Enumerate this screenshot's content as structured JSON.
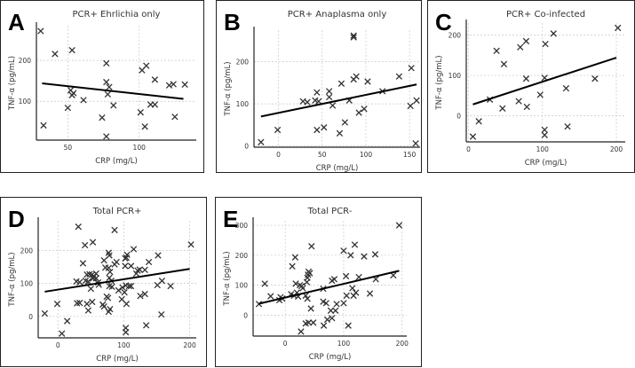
{
  "figure": {
    "panels": [
      "A",
      "B",
      "C",
      "D",
      "E"
    ]
  },
  "chart_data": [
    {
      "type": "scatter",
      "panel_letter": "A",
      "title": "PCR+ Ehrlichia only",
      "xlabel": "CRP (mg/L)",
      "ylabel": "TNF-α (pg/mL)",
      "xlim": [
        28,
        140
      ],
      "ylim": [
        5,
        285
      ],
      "xticks": [
        50,
        100
      ],
      "yticks": [
        100,
        200
      ],
      "grid": true,
      "marker": "x",
      "points": [
        [
          31,
          272
        ],
        [
          33,
          41
        ],
        [
          41,
          216
        ],
        [
          53,
          225
        ],
        [
          50,
          84
        ],
        [
          52,
          127
        ],
        [
          53,
          115
        ],
        [
          54,
          120
        ],
        [
          61,
          103
        ],
        [
          74,
          60
        ],
        [
          77,
          193
        ],
        [
          77,
          147
        ],
        [
          78,
          117
        ],
        [
          79,
          135
        ],
        [
          82,
          90
        ],
        [
          77,
          14
        ],
        [
          101,
          73
        ],
        [
          102,
          176
        ],
        [
          105,
          187
        ],
        [
          104,
          38
        ],
        [
          108,
          92
        ],
        [
          111,
          92
        ],
        [
          111,
          153
        ],
        [
          121,
          139
        ],
        [
          124,
          142
        ],
        [
          125,
          62
        ],
        [
          132,
          141
        ]
      ],
      "fit_line": {
        "x": [
          32,
          131
        ],
        "y": [
          144,
          106
        ]
      }
    },
    {
      "type": "scatter",
      "panel_letter": "B",
      "title": "PCR+ Anaplasma only",
      "xlabel": "CRP (mg/L)",
      "ylabel": "TNF-α (pg/mL)",
      "xlim": [
        -28,
        162
      ],
      "ylim": [
        -3,
        275
      ],
      "xticks": [
        0,
        50,
        100,
        150
      ],
      "yticks": [
        0,
        100,
        200
      ],
      "grid": true,
      "marker": "x",
      "points": [
        [
          -20,
          9
        ],
        [
          -1,
          38
        ],
        [
          28,
          106
        ],
        [
          33,
          104
        ],
        [
          42,
          108
        ],
        [
          44,
          38
        ],
        [
          44,
          127
        ],
        [
          46,
          106
        ],
        [
          52,
          44
        ],
        [
          58,
          116
        ],
        [
          58,
          130
        ],
        [
          62,
          96
        ],
        [
          70,
          30
        ],
        [
          72,
          148
        ],
        [
          76,
          56
        ],
        [
          81,
          108
        ],
        [
          86,
          158
        ],
        [
          86,
          262
        ],
        [
          86,
          258
        ],
        [
          89,
          165
        ],
        [
          92,
          79
        ],
        [
          98,
          88
        ],
        [
          102,
          153
        ],
        [
          119,
          130
        ],
        [
          138,
          165
        ],
        [
          151,
          95
        ],
        [
          152,
          185
        ],
        [
          157,
          6
        ],
        [
          158,
          108
        ]
      ],
      "fit_line": {
        "x": [
          -20,
          158
        ],
        "y": [
          70,
          146
        ]
      }
    },
    {
      "type": "scatter",
      "panel_letter": "C",
      "title": "PCR+ Co-infected",
      "xlabel": "CRP (mg/L)",
      "ylabel": "TNF-α (pg/mL)",
      "xlim": [
        -3,
        212
      ],
      "ylim": [
        -65,
        230
      ],
      "xticks": [
        0,
        100,
        200
      ],
      "yticks": [
        0,
        100,
        200
      ],
      "grid": true,
      "marker": "x",
      "points": [
        [
          6,
          -52
        ],
        [
          14,
          -14
        ],
        [
          29,
          40
        ],
        [
          38,
          161
        ],
        [
          46,
          18
        ],
        [
          48,
          128
        ],
        [
          68,
          36
        ],
        [
          70,
          170
        ],
        [
          78,
          185
        ],
        [
          78,
          92
        ],
        [
          79,
          22
        ],
        [
          97,
          52
        ],
        [
          104,
          178
        ],
        [
          103,
          94
        ],
        [
          103,
          -35
        ],
        [
          103,
          -48
        ],
        [
          115,
          204
        ],
        [
          132,
          68
        ],
        [
          134,
          -27
        ],
        [
          171,
          92
        ],
        [
          202,
          218
        ]
      ],
      "fit_line": {
        "x": [
          6,
          200
        ],
        "y": [
          28,
          144
        ]
      }
    },
    {
      "type": "scatter",
      "panel_letter": "D",
      "title": "Total PCR+",
      "xlabel": "CRP (mg/L)",
      "ylabel": "TNF-α (pg/mL)",
      "xlim": [
        -30,
        210
      ],
      "ylim": [
        -65,
        290
      ],
      "xticks": [
        0,
        100,
        200
      ],
      "yticks": [
        0,
        100,
        200
      ],
      "grid": true,
      "marker": "x",
      "points": [
        [
          -20,
          9
        ],
        [
          -1,
          38
        ],
        [
          6,
          -52
        ],
        [
          14,
          -14
        ],
        [
          28,
          106
        ],
        [
          29,
          40
        ],
        [
          31,
          272
        ],
        [
          33,
          104
        ],
        [
          33,
          41
        ],
        [
          38,
          161
        ],
        [
          41,
          216
        ],
        [
          42,
          108
        ],
        [
          44,
          38
        ],
        [
          44,
          127
        ],
        [
          46,
          18
        ],
        [
          46,
          106
        ],
        [
          48,
          128
        ],
        [
          50,
          84
        ],
        [
          52,
          44
        ],
        [
          52,
          127
        ],
        [
          53,
          225
        ],
        [
          53,
          115
        ],
        [
          54,
          120
        ],
        [
          58,
          116
        ],
        [
          58,
          130
        ],
        [
          61,
          103
        ],
        [
          62,
          96
        ],
        [
          68,
          36
        ],
        [
          70,
          30
        ],
        [
          70,
          170
        ],
        [
          72,
          148
        ],
        [
          74,
          60
        ],
        [
          76,
          56
        ],
        [
          77,
          193
        ],
        [
          77,
          147
        ],
        [
          77,
          14
        ],
        [
          78,
          117
        ],
        [
          78,
          185
        ],
        [
          78,
          92
        ],
        [
          79,
          22
        ],
        [
          79,
          135
        ],
        [
          81,
          108
        ],
        [
          82,
          90
        ],
        [
          86,
          158
        ],
        [
          86,
          262
        ],
        [
          89,
          165
        ],
        [
          92,
          79
        ],
        [
          97,
          52
        ],
        [
          98,
          88
        ],
        [
          101,
          73
        ],
        [
          102,
          176
        ],
        [
          102,
          153
        ],
        [
          103,
          94
        ],
        [
          103,
          -35
        ],
        [
          103,
          -48
        ],
        [
          104,
          178
        ],
        [
          104,
          38
        ],
        [
          105,
          187
        ],
        [
          108,
          92
        ],
        [
          111,
          92
        ],
        [
          111,
          153
        ],
        [
          115,
          204
        ],
        [
          119,
          130
        ],
        [
          121,
          139
        ],
        [
          124,
          142
        ],
        [
          125,
          62
        ],
        [
          132,
          141
        ],
        [
          132,
          68
        ],
        [
          134,
          -27
        ],
        [
          138,
          165
        ],
        [
          151,
          95
        ],
        [
          152,
          185
        ],
        [
          157,
          6
        ],
        [
          158,
          108
        ],
        [
          171,
          92
        ],
        [
          202,
          218
        ]
      ],
      "fit_line": {
        "x": [
          -20,
          200
        ],
        "y": [
          75,
          144
        ]
      }
    },
    {
      "type": "scatter",
      "panel_letter": "E",
      "title": "Total PCR-",
      "xlabel": "CRP (mg/L)",
      "ylabel": "TNF-α (pg/mL)",
      "xlim": [
        -55,
        208
      ],
      "ylim": [
        -70,
        315
      ],
      "xticks": [
        0,
        100,
        200
      ],
      "yticks": [
        0,
        100,
        200,
        300
      ],
      "grid": true,
      "marker": "x",
      "points": [
        [
          -45,
          37
        ],
        [
          -35,
          105
        ],
        [
          -25,
          63
        ],
        [
          -10,
          50
        ],
        [
          -8,
          60
        ],
        [
          -5,
          55
        ],
        [
          10,
          70
        ],
        [
          12,
          163
        ],
        [
          15,
          65
        ],
        [
          17,
          193
        ],
        [
          18,
          105
        ],
        [
          20,
          75
        ],
        [
          22,
          62
        ],
        [
          25,
          100
        ],
        [
          27,
          -55
        ],
        [
          28,
          97
        ],
        [
          30,
          90
        ],
        [
          35,
          65
        ],
        [
          35,
          -28
        ],
        [
          37,
          110
        ],
        [
          38,
          125
        ],
        [
          38,
          55
        ],
        [
          39,
          135
        ],
        [
          40,
          145
        ],
        [
          40,
          -25
        ],
        [
          42,
          140
        ],
        [
          44,
          22
        ],
        [
          45,
          230
        ],
        [
          48,
          -25
        ],
        [
          65,
          88
        ],
        [
          65,
          45
        ],
        [
          66,
          -35
        ],
        [
          70,
          40
        ],
        [
          72,
          -15
        ],
        [
          78,
          15
        ],
        [
          80,
          115
        ],
        [
          80,
          -10
        ],
        [
          84,
          120
        ],
        [
          86,
          15
        ],
        [
          88,
          37
        ],
        [
          100,
          40
        ],
        [
          100,
          215
        ],
        [
          104,
          130
        ],
        [
          105,
          65
        ],
        [
          108,
          -35
        ],
        [
          112,
          200
        ],
        [
          115,
          90
        ],
        [
          117,
          65
        ],
        [
          119,
          235
        ],
        [
          121,
          75
        ],
        [
          126,
          127
        ],
        [
          135,
          196
        ],
        [
          145,
          72
        ],
        [
          154,
          203
        ],
        [
          155,
          120
        ],
        [
          185,
          133
        ],
        [
          195,
          300
        ]
      ],
      "fit_line": {
        "x": [
          -45,
          195
        ],
        "y": [
          38,
          148
        ]
      }
    }
  ]
}
